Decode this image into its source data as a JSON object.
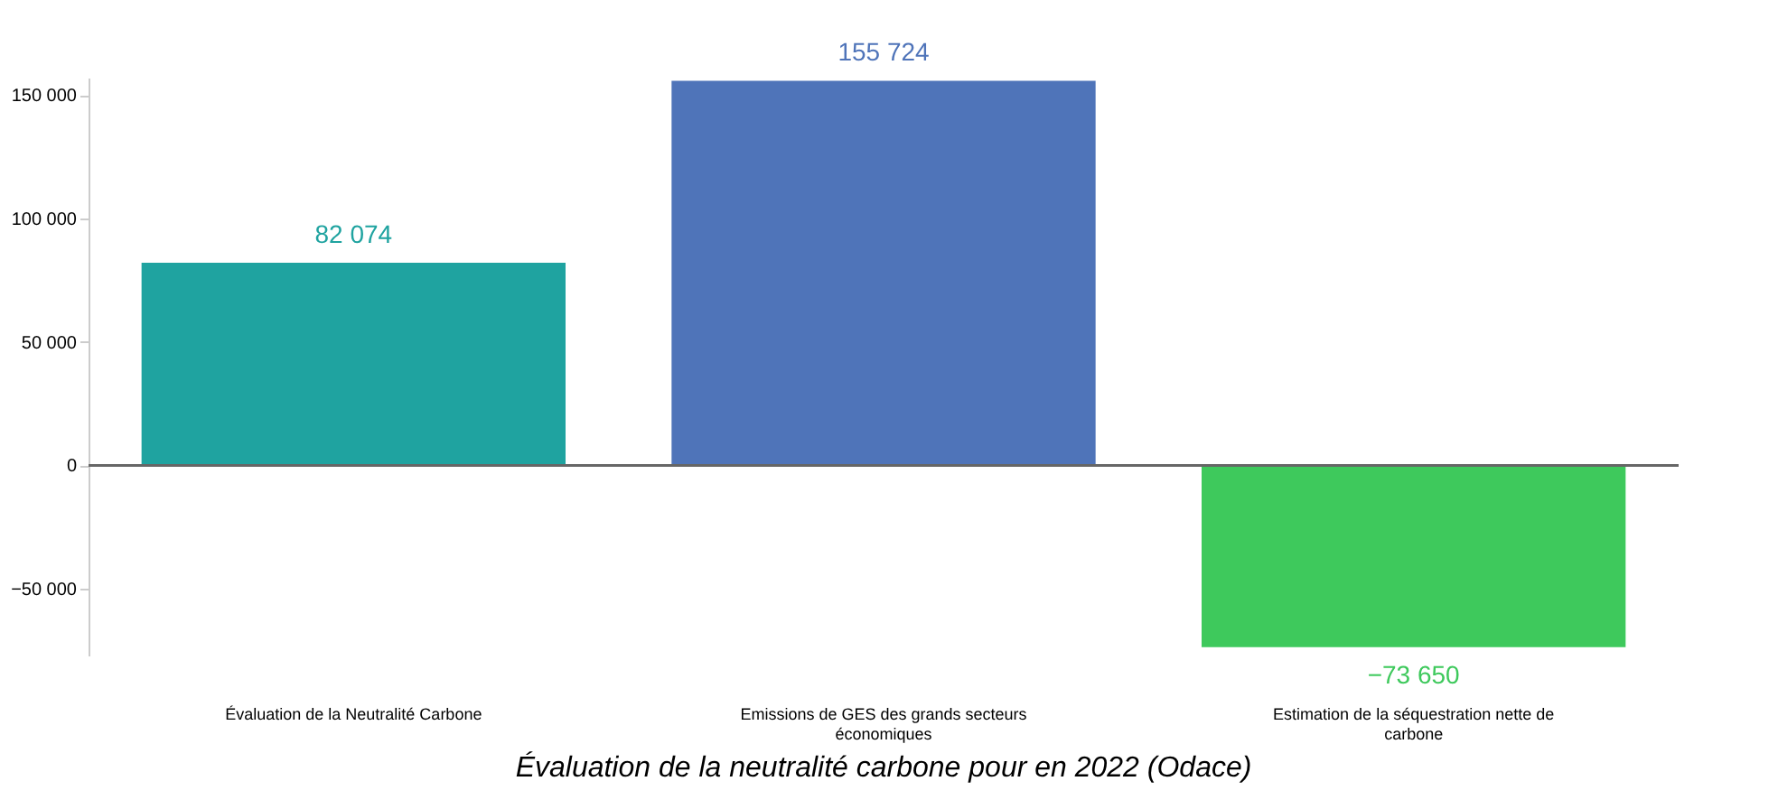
{
  "chart_data": {
    "type": "bar",
    "title": "Évaluation de la neutralité carbone pour en 2022 (Odace)",
    "categories": [
      "Évaluation de la Neutralité Carbone",
      "Emissions de GES des grands secteurs économiques",
      "Estimation de la séquestration nette de carbone"
    ],
    "values": [
      82074,
      155724,
      -73650
    ],
    "colors": [
      "#1fa3a0",
      "#4f74b9",
      "#3ec95c"
    ],
    "value_labels": [
      "82 074",
      "155 724",
      "−73 650"
    ],
    "ylim": [
      -77000,
      157000
    ],
    "yticks": [
      {
        "value": -50000,
        "label": "−50 000"
      },
      {
        "value": 0,
        "label": "0"
      },
      {
        "value": 50000,
        "label": "50 000"
      },
      {
        "value": 100000,
        "label": "100 000"
      },
      {
        "value": 150000,
        "label": "150 000"
      }
    ],
    "ref_lines": [
      {
        "axis": "y",
        "value": 0,
        "color": "#666666"
      }
    ],
    "grid": false
  }
}
